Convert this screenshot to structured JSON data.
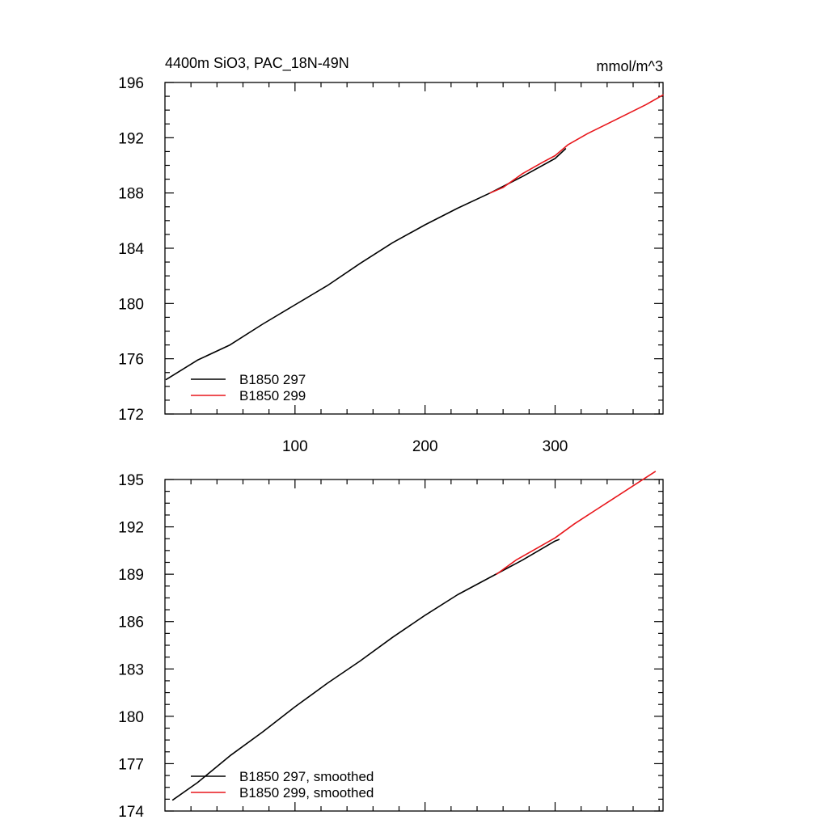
{
  "chart_data": [
    {
      "type": "line",
      "title": "4400m SiO3, PAC_18N-49N",
      "units": "mmol/m^3",
      "xlim": [
        0,
        383
      ],
      "ylim": [
        172,
        196
      ],
      "xticks": [
        100,
        200,
        300
      ],
      "yticks": [
        172,
        176,
        180,
        184,
        188,
        192,
        196
      ],
      "grid": false,
      "legend": "bottom-left",
      "series": [
        {
          "name": "B1850 297",
          "color": "#000000",
          "x": [
            1,
            25,
            50,
            75,
            100,
            125,
            150,
            175,
            200,
            225,
            250,
            275,
            300,
            308
          ],
          "y": [
            174.5,
            175.9,
            177.0,
            178.5,
            179.9,
            181.3,
            182.9,
            184.4,
            185.7,
            186.9,
            188.0,
            189.2,
            190.5,
            191.2
          ]
        },
        {
          "name": "B1850 299",
          "color": "#e8161b",
          "x": [
            250,
            260,
            275,
            290,
            300,
            310,
            325,
            340,
            355,
            370,
            383
          ],
          "y": [
            188.0,
            188.4,
            189.4,
            190.2,
            190.7,
            191.5,
            192.3,
            193.0,
            193.7,
            194.4,
            195.1
          ]
        }
      ]
    },
    {
      "type": "line",
      "xlim": [
        0,
        383
      ],
      "ylim": [
        174,
        195
      ],
      "xticks": [
        100,
        200,
        300
      ],
      "yticks": [
        174,
        177,
        180,
        183,
        186,
        189,
        192,
        195
      ],
      "grid": false,
      "legend": "bottom-left",
      "series": [
        {
          "name": "B1850 297, smoothed",
          "color": "#000000",
          "x": [
            6,
            25,
            50,
            75,
            100,
            125,
            150,
            175,
            200,
            225,
            250,
            275,
            300,
            303
          ],
          "y": [
            174.7,
            175.8,
            177.5,
            179.0,
            180.6,
            182.1,
            183.5,
            185.0,
            186.4,
            187.7,
            188.8,
            189.9,
            191.1,
            191.2
          ]
        },
        {
          "name": "B1850 299, smoothed",
          "color": "#e8161b",
          "x": [
            255,
            270,
            285,
            300,
            315,
            330,
            345,
            360,
            377
          ],
          "y": [
            189.0,
            189.9,
            190.6,
            191.3,
            192.2,
            193.0,
            193.8,
            194.6,
            195.5
          ]
        }
      ]
    }
  ]
}
